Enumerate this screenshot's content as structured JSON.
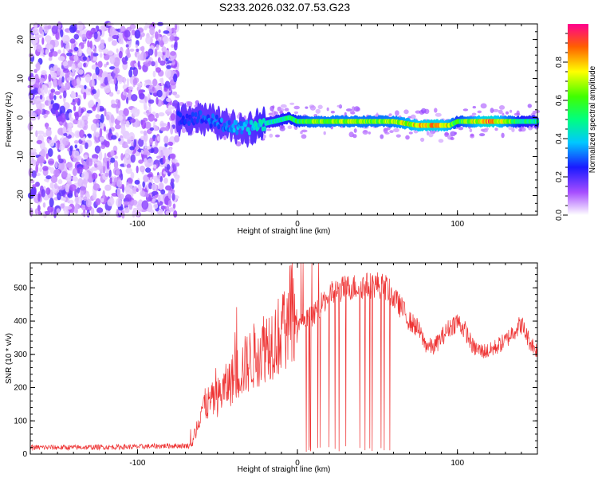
{
  "page_title": "S233.2026.032.07.53.G23",
  "chart_data": [
    {
      "type": "heatmap",
      "id": "spectrogram",
      "xlabel": "Height of straight line (km)",
      "ylabel": "Frequency (Hz)",
      "xlim": [
        -167,
        150
      ],
      "ylim": [
        -25,
        24
      ],
      "xticks": [
        -100,
        0,
        100
      ],
      "yticks": [
        -20,
        -10,
        0,
        10,
        20
      ],
      "colorbar": {
        "label": "Normalized spectral amplitude",
        "range": [
          0,
          1
        ],
        "ticks": [
          "0.0",
          "0.2",
          "0.4",
          "0.6",
          "0.8"
        ],
        "tick_values": [
          0.0,
          0.2,
          0.4,
          0.6,
          0.8
        ],
        "stops": [
          {
            "v": 0.0,
            "color": "#ffffff"
          },
          {
            "v": 0.12,
            "color": "#a64dff"
          },
          {
            "v": 0.25,
            "color": "#1a1aff"
          },
          {
            "v": 0.38,
            "color": "#00c8ff"
          },
          {
            "v": 0.5,
            "color": "#00ff80"
          },
          {
            "v": 0.62,
            "color": "#40ff00"
          },
          {
            "v": 0.75,
            "color": "#ffff00"
          },
          {
            "v": 0.88,
            "color": "#ff6000"
          },
          {
            "v": 1.0,
            "color": "#ff0090"
          }
        ]
      },
      "noise_region_x": [
        -167,
        -75
      ],
      "ridge": {
        "x": [
          -75,
          -60,
          -45,
          -35,
          -25,
          -15,
          -5,
          0,
          10,
          30,
          50,
          60,
          75,
          85,
          95,
          100,
          120,
          140,
          150
        ],
        "freq": [
          0,
          0,
          -2,
          -3,
          -2,
          -1,
          0,
          -1,
          -1,
          -1,
          -1,
          -1,
          -2,
          -2,
          -2,
          -1,
          -1,
          -1,
          -1
        ],
        "amp": [
          0.25,
          0.3,
          0.35,
          0.4,
          0.45,
          0.5,
          0.55,
          0.6,
          0.7,
          0.72,
          0.7,
          0.72,
          0.85,
          0.9,
          0.8,
          0.6,
          0.95,
          0.55,
          0.5
        ]
      }
    },
    {
      "type": "line",
      "id": "snr",
      "xlabel": "Height of straight line (km)",
      "ylabel": "SNR (10 * v/v)",
      "xlim": [
        -167,
        150
      ],
      "ylim": [
        0,
        575
      ],
      "xticks": [
        -100,
        0,
        100
      ],
      "yticks": [
        0,
        100,
        200,
        300,
        400,
        500
      ],
      "color": "#ee3333",
      "envelope": {
        "x": [
          -167,
          -140,
          -100,
          -80,
          -66,
          -60,
          -50,
          -40,
          -30,
          -20,
          -10,
          0,
          10,
          20,
          30,
          40,
          50,
          56,
          60,
          65,
          70,
          75,
          80,
          85,
          90,
          95,
          100,
          105,
          110,
          115,
          120,
          130,
          135,
          140,
          145,
          150
        ],
        "y": [
          20,
          20,
          22,
          25,
          25,
          140,
          170,
          230,
          280,
          330,
          360,
          380,
          420,
          480,
          500,
          505,
          510,
          500,
          470,
          440,
          400,
          380,
          330,
          320,
          350,
          380,
          400,
          370,
          320,
          310,
          310,
          340,
          370,
          390,
          340,
          310
        ]
      },
      "dropouts_x_range": [
        0,
        65
      ],
      "dropout_min": 5
    }
  ]
}
